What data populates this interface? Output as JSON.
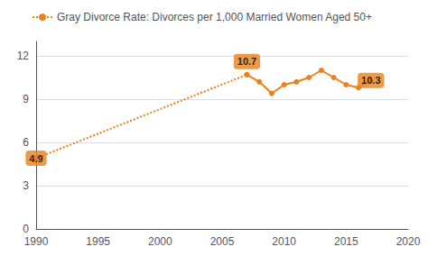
{
  "chart_data": {
    "type": "line",
    "series": [
      {
        "name": "Gray Divorce Rate: Divorces per 1,000 Married Women Aged 50+",
        "x": [
          1990,
          2007
        ],
        "values": [
          4.9,
          10.7
        ],
        "color": "#E8821A",
        "line_style": "dotted",
        "marker": "circle"
      },
      {
        "name": "Gray Divorce Rate: Divorces per 1,000 Married Women Aged 50+",
        "x": [
          2007,
          2008,
          2009,
          2010,
          2011,
          2012,
          2013,
          2014,
          2015,
          2016,
          2017
        ],
        "values": [
          10.7,
          10.2,
          9.4,
          10.0,
          10.2,
          10.5,
          11.0,
          10.5,
          10.0,
          9.8,
          10.3
        ],
        "color": "#E8821A",
        "line_style": "solid",
        "marker": "circle"
      }
    ],
    "annotations": [
      {
        "x": 1990,
        "y": 4.9,
        "label": "4.9",
        "color": "#E8821A"
      },
      {
        "x": 2007,
        "y": 10.7,
        "label": "10.7",
        "color": "#E8821A"
      },
      {
        "x": 2017,
        "y": 10.3,
        "label": "10.3",
        "color": "#E8821A"
      }
    ],
    "xlim": [
      1990,
      2020
    ],
    "xticks": [
      1990,
      1995,
      2000,
      2005,
      2010,
      2015,
      2020
    ],
    "ylim": [
      0,
      13
    ],
    "yticks": [
      0,
      3,
      6,
      9,
      12
    ],
    "grid": true,
    "legend": "upper left"
  }
}
